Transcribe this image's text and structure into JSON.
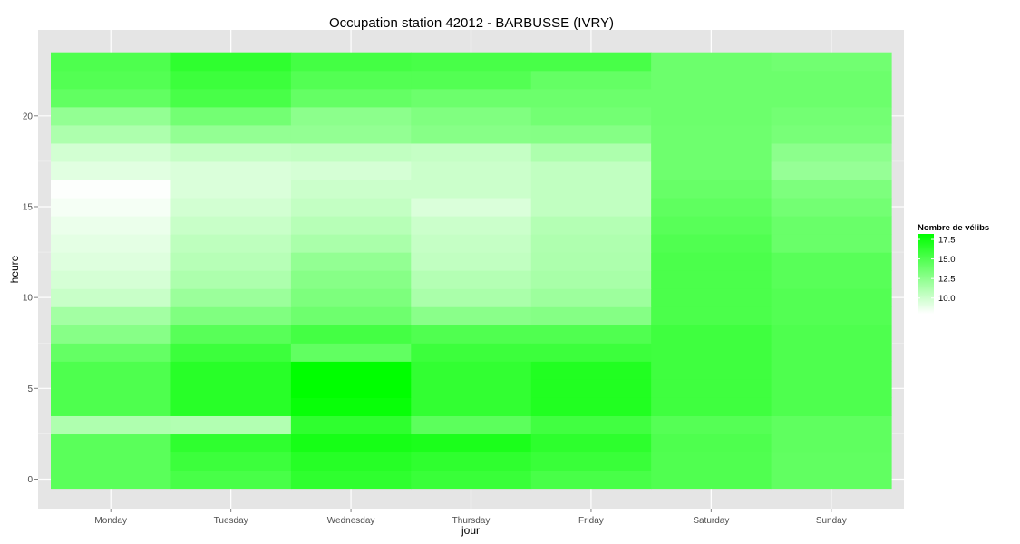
{
  "chart_data": {
    "type": "heatmap",
    "title": "Occupation station 42012 - BARBUSSE (IVRY)",
    "xlabel": "jour",
    "ylabel": "heure",
    "x_categories": [
      "Monday",
      "Tuesday",
      "Wednesday",
      "Thursday",
      "Friday",
      "Saturday",
      "Sunday"
    ],
    "y_hours": [
      0,
      1,
      2,
      3,
      4,
      5,
      6,
      7,
      8,
      9,
      10,
      11,
      12,
      13,
      14,
      15,
      16,
      17,
      18,
      19,
      20,
      21,
      22,
      23
    ],
    "y_ticks": [
      0,
      5,
      10,
      15,
      20
    ],
    "ylim": [
      -0.5,
      23.5
    ],
    "values": [
      [
        14.6,
        15.3,
        16.3,
        15.9,
        15.3,
        15.0,
        14.3
      ],
      [
        14.6,
        15.8,
        16.7,
        16.3,
        15.9,
        15.0,
        14.3
      ],
      [
        14.6,
        16.3,
        17.3,
        17.1,
        16.4,
        15.1,
        14.4
      ],
      [
        11.2,
        11.1,
        16.3,
        14.5,
        15.6,
        14.8,
        14.4
      ],
      [
        15.1,
        16.6,
        17.9,
        16.2,
        16.9,
        15.7,
        15.1
      ],
      [
        15.1,
        16.6,
        18.2,
        16.2,
        16.9,
        15.7,
        15.1
      ],
      [
        15.1,
        16.6,
        18.2,
        16.2,
        16.9,
        15.7,
        15.1
      ],
      [
        14.2,
        15.8,
        14.3,
        15.8,
        15.8,
        15.7,
        15.1
      ],
      [
        12.8,
        14.7,
        15.5,
        15.0,
        15.0,
        15.7,
        15.1
      ],
      [
        11.7,
        13.1,
        13.8,
        12.7,
        12.9,
        15.2,
        14.9
      ],
      [
        10.2,
        12.0,
        13.2,
        11.4,
        11.9,
        15.2,
        14.9
      ],
      [
        9.7,
        11.3,
        12.8,
        11.0,
        11.5,
        15.2,
        14.7
      ],
      [
        9.3,
        10.9,
        12.3,
        10.5,
        11.3,
        15.2,
        14.7
      ],
      [
        9.1,
        10.6,
        11.4,
        10.3,
        11.2,
        15.0,
        14.0
      ],
      [
        8.8,
        10.2,
        10.9,
        10.1,
        11.0,
        14.7,
        14.0
      ],
      [
        8.4,
        9.8,
        10.4,
        9.5,
        10.5,
        14.4,
        13.6
      ],
      [
        8.1,
        9.5,
        10.1,
        10.1,
        10.5,
        14.1,
        13.2
      ],
      [
        9.2,
        9.5,
        9.7,
        10.1,
        10.5,
        13.8,
        12.2
      ],
      [
        9.8,
        10.3,
        10.5,
        10.3,
        11.3,
        13.8,
        12.6
      ],
      [
        11.3,
        12.3,
        12.3,
        12.8,
        12.9,
        13.8,
        13.4
      ],
      [
        12.3,
        13.6,
        12.6,
        13.1,
        13.6,
        13.9,
        13.6
      ],
      [
        14.3,
        15.3,
        14.2,
        13.9,
        13.9,
        13.9,
        13.9
      ],
      [
        14.9,
        15.8,
        14.9,
        14.9,
        14.2,
        13.9,
        13.9
      ],
      [
        15.1,
        16.3,
        15.5,
        15.3,
        15.3,
        13.9,
        13.7
      ]
    ],
    "legend": {
      "title": "Nombre de vélibs",
      "labels": [
        "17.5",
        "15.0",
        "12.5",
        "10.0"
      ],
      "breaks": [
        17.5,
        15.0,
        12.5,
        10.0
      ],
      "range": [
        8.0,
        18.2
      ],
      "low_color": "#ffffff",
      "high_color": "#00ff00",
      "position": "right"
    },
    "panel_background": "#e5e5e5",
    "grid": true
  }
}
